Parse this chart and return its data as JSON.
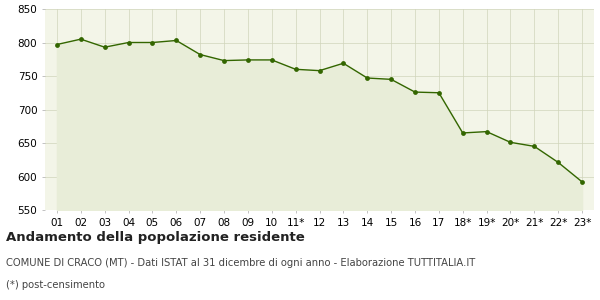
{
  "x_labels": [
    "01",
    "02",
    "03",
    "04",
    "05",
    "06",
    "07",
    "08",
    "09",
    "10",
    "11*",
    "12",
    "13",
    "14",
    "15",
    "16",
    "17",
    "18*",
    "19*",
    "20*",
    "21*",
    "22*",
    "23*"
  ],
  "y_values": [
    797,
    805,
    793,
    800,
    800,
    803,
    782,
    773,
    774,
    774,
    760,
    758,
    769,
    747,
    745,
    726,
    725,
    665,
    667,
    651,
    645,
    621,
    592
  ],
  "line_color": "#336600",
  "fill_color": "#e8edd8",
  "marker_color": "#336600",
  "bg_color": "#f3f5e8",
  "grid_color": "#d0d4bb",
  "ylim": [
    550,
    850
  ],
  "yticks": [
    550,
    600,
    650,
    700,
    750,
    800,
    850
  ],
  "title": "Andamento della popolazione residente",
  "subtitle": "COMUNE DI CRACO (MT) - Dati ISTAT al 31 dicembre di ogni anno - Elaborazione TUTTITALIA.IT",
  "footnote": "(*) post-censimento",
  "title_fontsize": 9.5,
  "subtitle_fontsize": 7.2,
  "footnote_fontsize": 7.2,
  "tick_fontsize": 7.5
}
